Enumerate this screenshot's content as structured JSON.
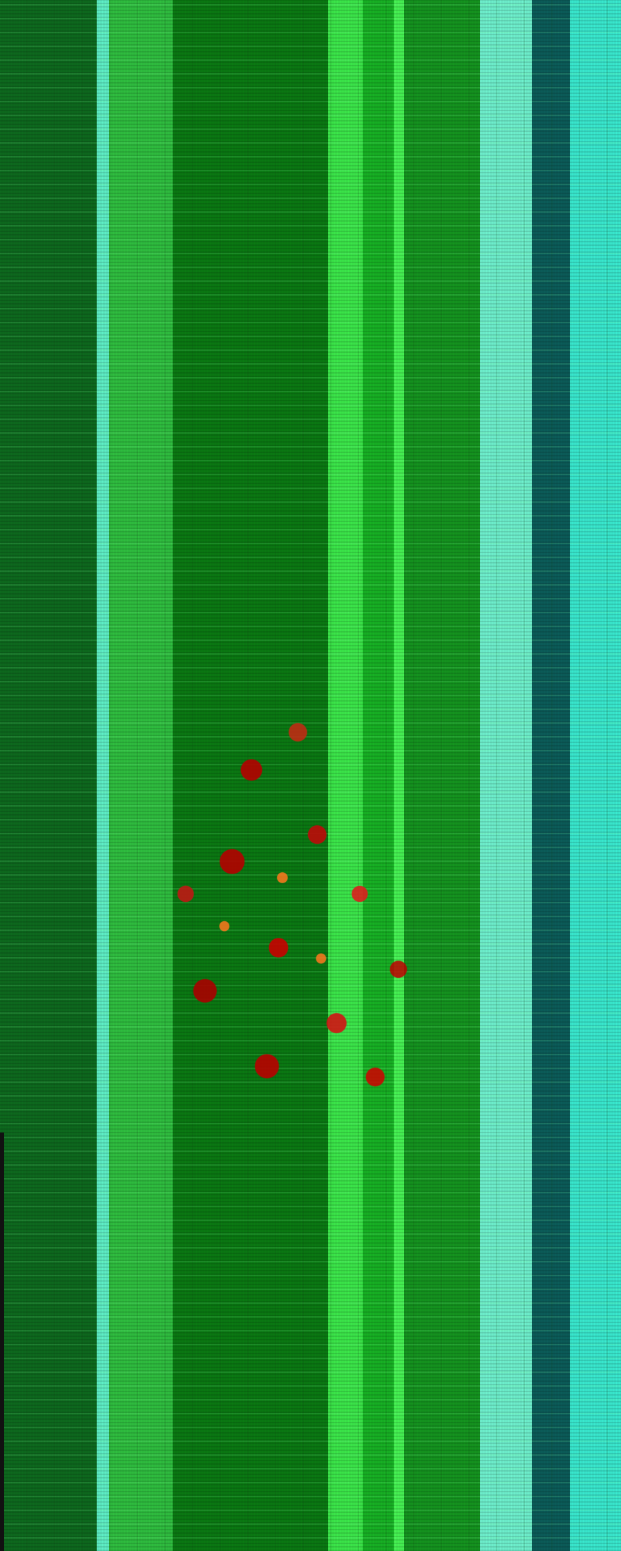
{
  "palette": {
    "dark_green": "#0d6a1e",
    "green": "#0a7a12",
    "light_green": "#3be84a",
    "cyan": "#5ef0c7",
    "teal": "#0b5d5a",
    "red": "#b80000",
    "orange": "#ff7a1e"
  }
}
